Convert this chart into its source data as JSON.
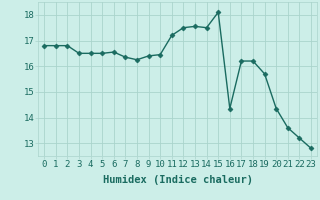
{
  "x": [
    0,
    1,
    2,
    3,
    4,
    5,
    6,
    7,
    8,
    9,
    10,
    11,
    12,
    13,
    14,
    15,
    16,
    17,
    18,
    19,
    20,
    21,
    22,
    23
  ],
  "y": [
    16.8,
    16.8,
    16.8,
    16.5,
    16.5,
    16.5,
    16.55,
    16.35,
    16.25,
    16.4,
    16.45,
    17.2,
    17.5,
    17.55,
    17.5,
    18.1,
    14.35,
    16.2,
    16.2,
    15.7,
    14.35,
    13.6,
    13.2,
    12.8
  ],
  "line_color": "#1a6b60",
  "marker": "D",
  "marker_size": 2.5,
  "background_color": "#cceee8",
  "grid_color": "#aad4cc",
  "xlabel": "Humidex (Indice chaleur)",
  "xlabel_fontsize": 7.5,
  "ylim": [
    12.5,
    18.5
  ],
  "xlim": [
    -0.5,
    23.5
  ],
  "yticks": [
    13,
    14,
    15,
    16,
    17,
    18
  ],
  "xticks": [
    0,
    1,
    2,
    3,
    4,
    5,
    6,
    7,
    8,
    9,
    10,
    11,
    12,
    13,
    14,
    15,
    16,
    17,
    18,
    19,
    20,
    21,
    22,
    23
  ],
  "tick_fontsize": 6.5,
  "line_width": 1.0
}
